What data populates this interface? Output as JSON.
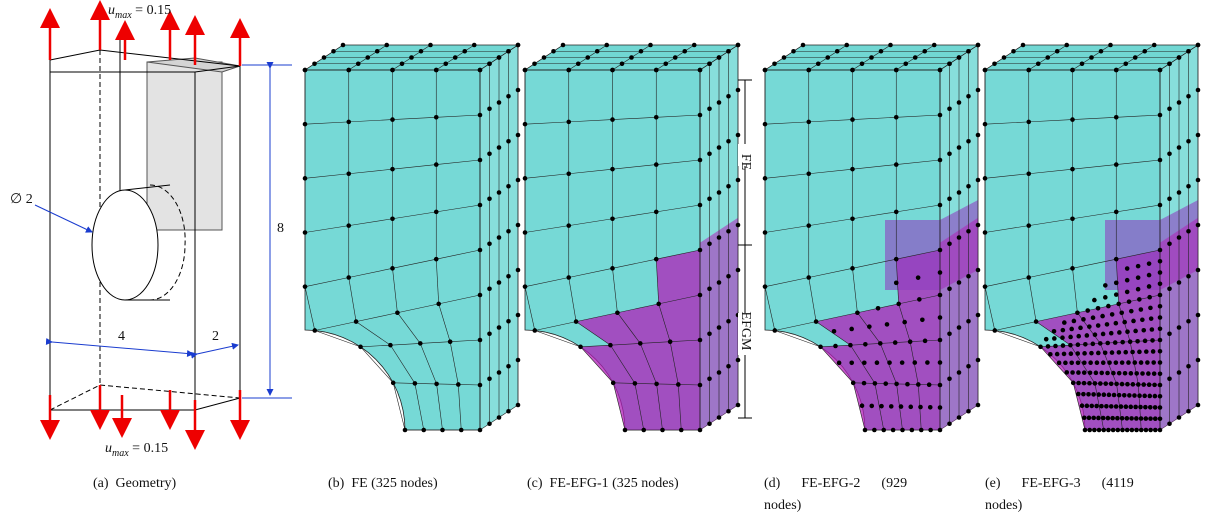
{
  "geometry": {
    "top_load": {
      "symbol": "u",
      "subscript": "max",
      "rest": " = 0.15"
    },
    "bottom_load": {
      "symbol": "u",
      "subscript": "max",
      "rest": " = 0.15"
    },
    "hole": "∅ 2",
    "height": "8",
    "width": "4",
    "depth": "2"
  },
  "regions": {
    "fe": "FE",
    "efgm": "EFGM"
  },
  "captions": [
    [
      "(a)  Geometry)"
    ],
    [
      "(b)  FE (325 nodes)"
    ],
    [
      "(c)  FE-EFG-1 (325 nodes)"
    ],
    [
      "(d)      FE-EFG-2      (929",
      "nodes)"
    ],
    [
      "(e)      FE-EFG-3      (4119",
      "nodes)"
    ]
  ]
}
